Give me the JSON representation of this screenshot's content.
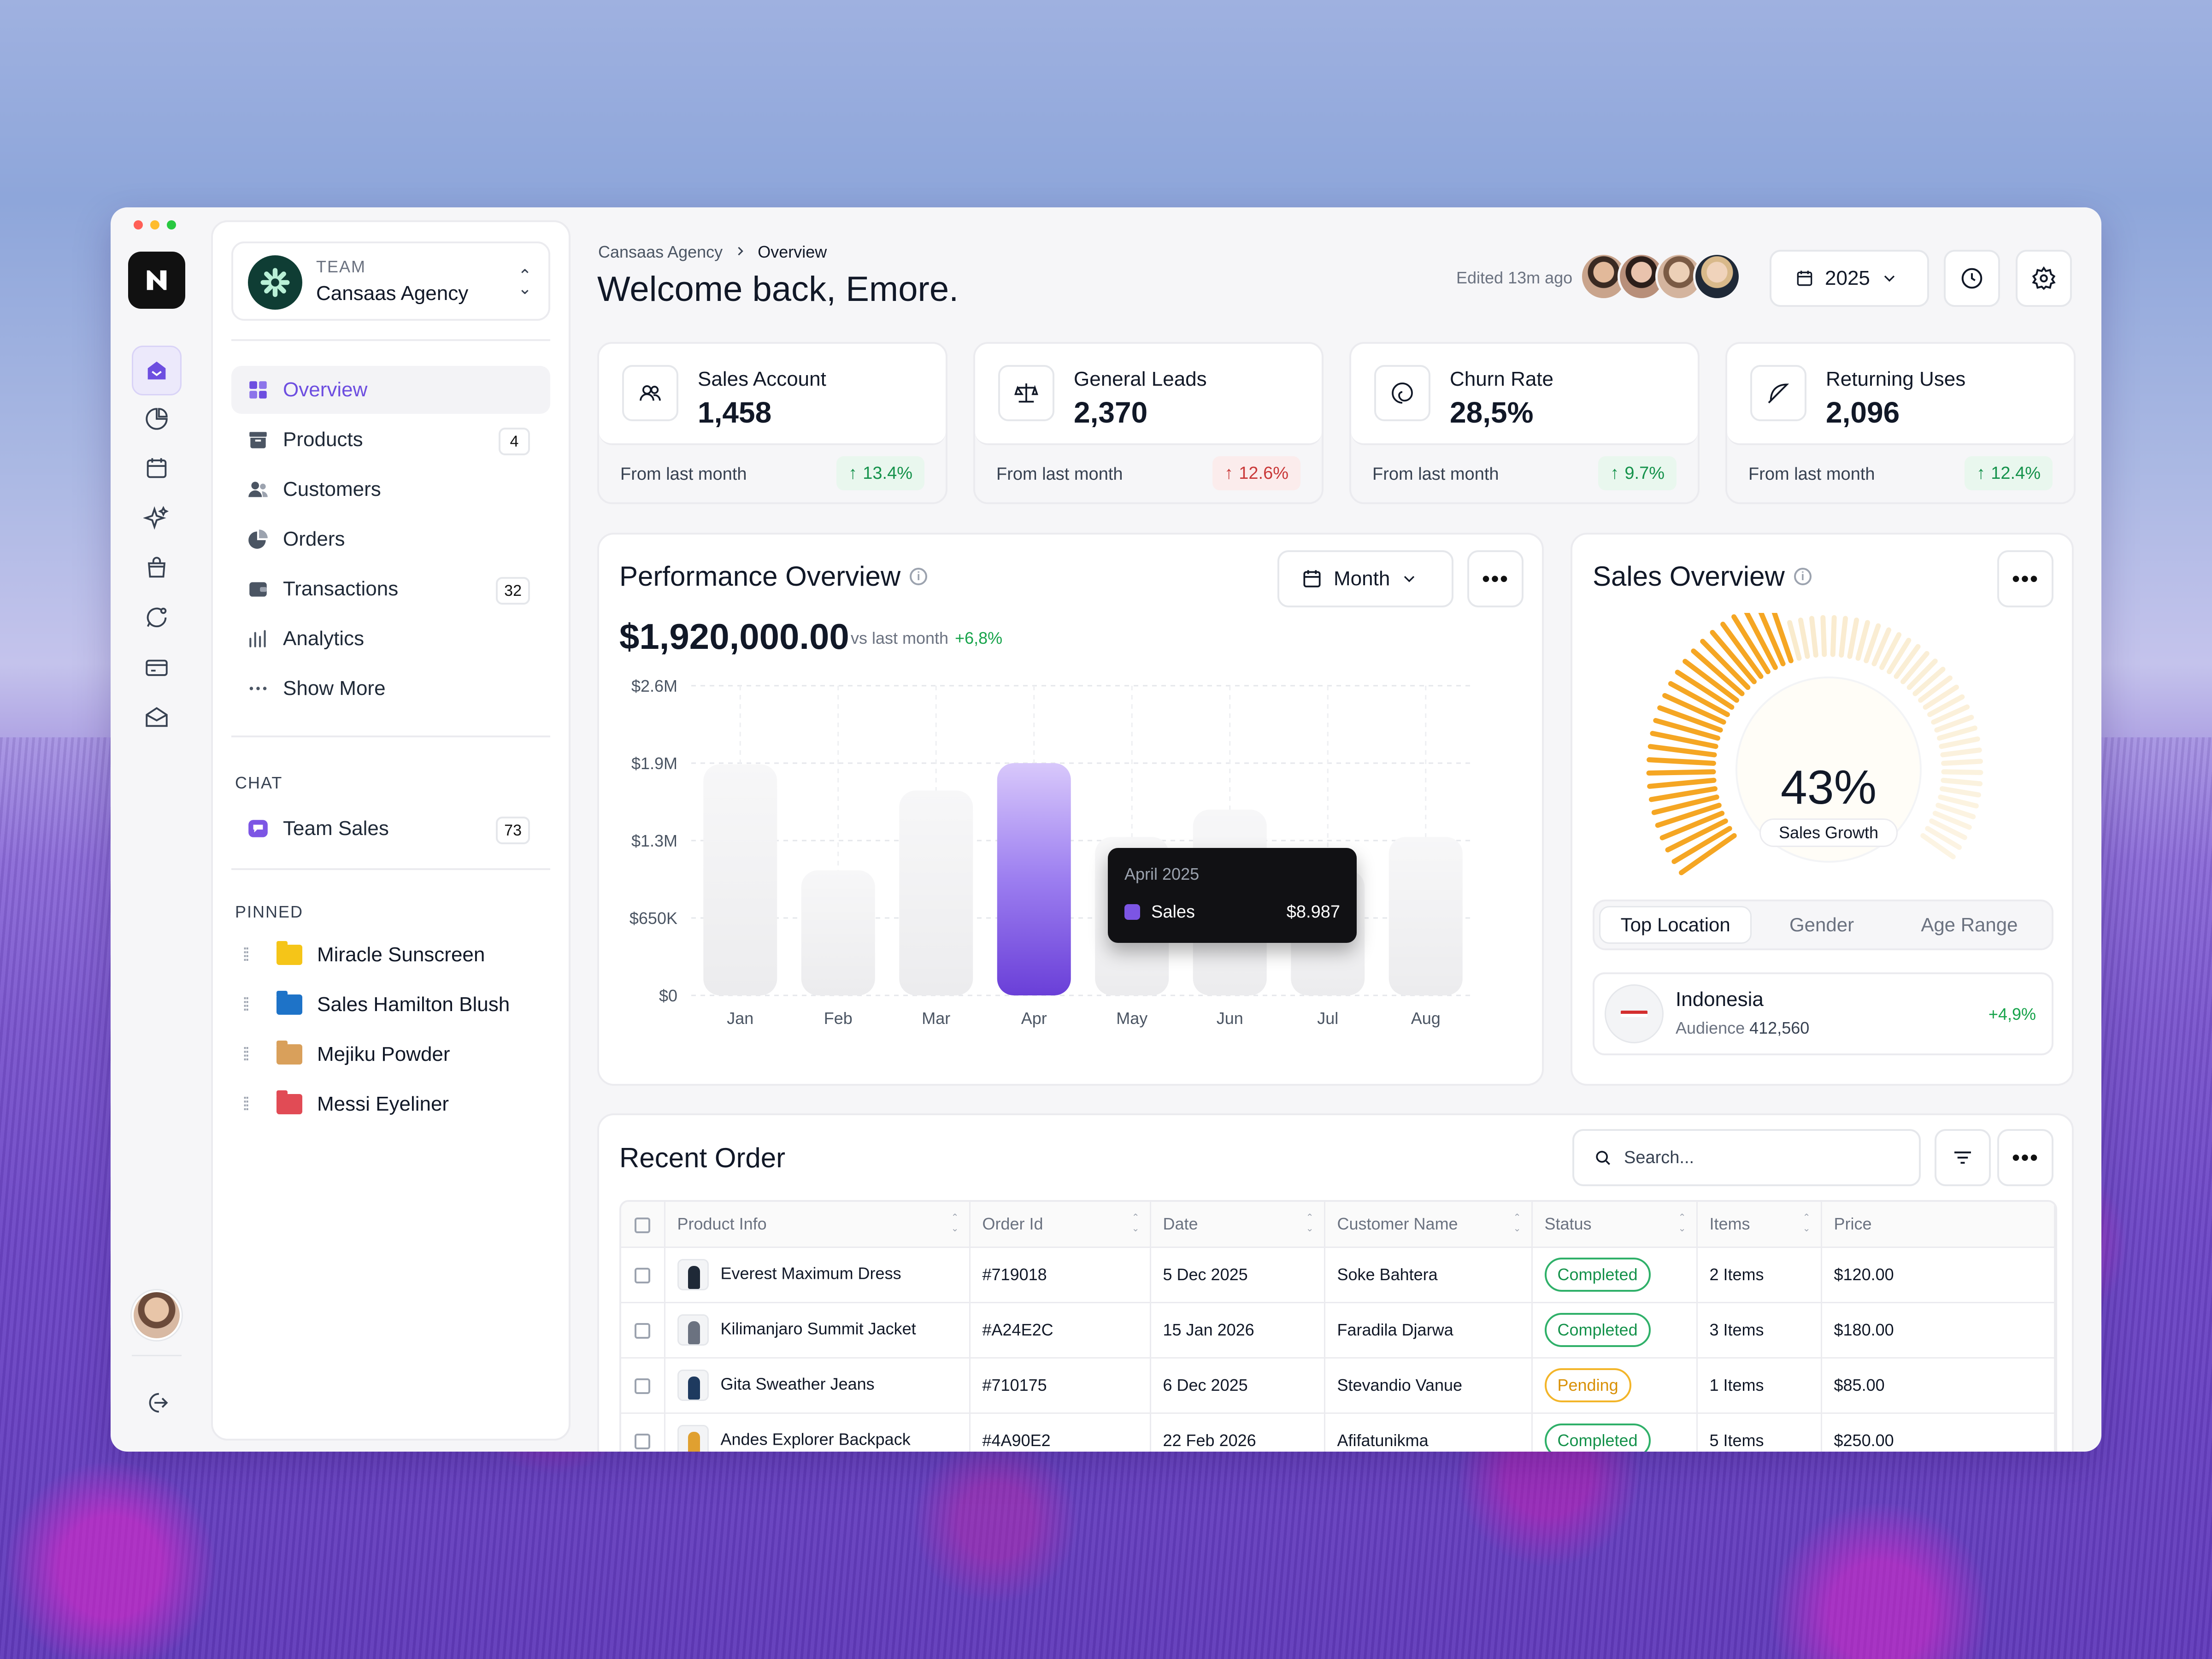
{
  "team": {
    "label": "TEAM",
    "name": "Cansaas Agency"
  },
  "nav": [
    {
      "label": "Overview",
      "icon": "grid-icon",
      "count": ""
    },
    {
      "label": "Products",
      "icon": "archive-icon",
      "count": "4"
    },
    {
      "label": "Customers",
      "icon": "users-icon",
      "count": ""
    },
    {
      "label": "Orders",
      "icon": "pie-icon",
      "count": ""
    },
    {
      "label": "Transactions",
      "icon": "wallet-icon",
      "count": "32"
    },
    {
      "label": "Analytics",
      "icon": "bar-chart-icon",
      "count": ""
    },
    {
      "label": "Show More",
      "icon": "dots-icon",
      "count": ""
    }
  ],
  "chat": {
    "title": "CHAT",
    "item": "Team Sales",
    "count": "73"
  },
  "pinned": {
    "title": "PINNED",
    "items": [
      {
        "label": "Miracle Sunscreen",
        "color": "#f5c518"
      },
      {
        "label": "Sales Hamilton Blush",
        "color": "#1e73c8"
      },
      {
        "label": "Mejiku Powder",
        "color": "#d9a05b"
      },
      {
        "label": "Messi Eyeliner",
        "color": "#e14b55"
      }
    ]
  },
  "header": {
    "crumb_parent": "Cansaas Agency",
    "crumb_current": "Overview",
    "welcome": "Welcome back, Emore.",
    "edited": "Edited 13m ago",
    "year": "2025"
  },
  "stats": [
    {
      "name": "Sales Account",
      "value": "1,458",
      "from": "From last month",
      "change": "13.4%",
      "dir": "up"
    },
    {
      "name": "General Leads",
      "value": "2,370",
      "from": "From last month",
      "change": "12.6%",
      "dir": "down"
    },
    {
      "name": "Churn Rate",
      "value": "28,5%",
      "from": "From last month",
      "change": "9.7%",
      "dir": "up"
    },
    {
      "name": "Returning Uses",
      "value": "2,096",
      "from": "From last month",
      "change": "12.4%",
      "dir": "up"
    }
  ],
  "performance": {
    "title": "Performance Overview",
    "period": "Month",
    "amount": "$1,920,000.00",
    "vs_label": "vs last month",
    "vs_change": "+6,8%",
    "tooltip": {
      "title": "April 2025",
      "series": "Sales",
      "value": "$8.987"
    }
  },
  "chart_data": {
    "type": "bar",
    "categories": [
      "Jan",
      "Feb",
      "Mar",
      "Apr",
      "May",
      "Jun",
      "Jul",
      "Aug"
    ],
    "values": [
      1940000,
      1050000,
      1720000,
      1950000,
      1330000,
      1560000,
      1050000,
      1330000
    ],
    "highlight": "Apr",
    "yticks": [
      "$2.6M",
      "$1.9M",
      "$1.3M",
      "$650K",
      "$0"
    ],
    "ylim": [
      0,
      2600000
    ],
    "grid": true
  },
  "sales_overview": {
    "title": "Sales Overview",
    "percent": 43,
    "percent_label": "43%",
    "growth_label": "Sales Growth",
    "tabs": [
      "Top Location",
      "Gender",
      "Age Range"
    ],
    "location": {
      "country": "Indonesia",
      "audience_label": "Audience",
      "audience": "412,560",
      "change": "+4,9%"
    }
  },
  "orders": {
    "title": "Recent Order",
    "search_placeholder": "Search...",
    "columns": [
      "Product Info",
      "Order Id",
      "Date",
      "Customer Name",
      "Status",
      "Items",
      "Price"
    ],
    "rows": [
      {
        "product": "Everest Maximum Dress",
        "id": "#719018",
        "date": "5 Dec 2025",
        "customer": "Soke Bahtera",
        "status": "Completed",
        "items": "2 Items",
        "price": "$120.00"
      },
      {
        "product": "Kilimanjaro Summit Jacket",
        "id": "#A24E2C",
        "date": "15 Jan 2026",
        "customer": "Faradila Djarwa",
        "status": "Completed",
        "items": "3 Items",
        "price": "$180.00"
      },
      {
        "product": "Gita Sweather Jeans",
        "id": "#710175",
        "date": "6 Dec 2025",
        "customer": "Stevandio Vanue",
        "status": "Pending",
        "items": "1 Items",
        "price": "$85.00"
      },
      {
        "product": "Andes Explorer Backpack",
        "id": "#4A90E2",
        "date": "22 Feb 2026",
        "customer": "Afifatunikma",
        "status": "Completed",
        "items": "5 Items",
        "price": "$250.00"
      }
    ]
  },
  "colors": {
    "accent": "#6d4ee0",
    "up": "#15924b",
    "down": "#c93838",
    "gauge": "#f5a623"
  }
}
